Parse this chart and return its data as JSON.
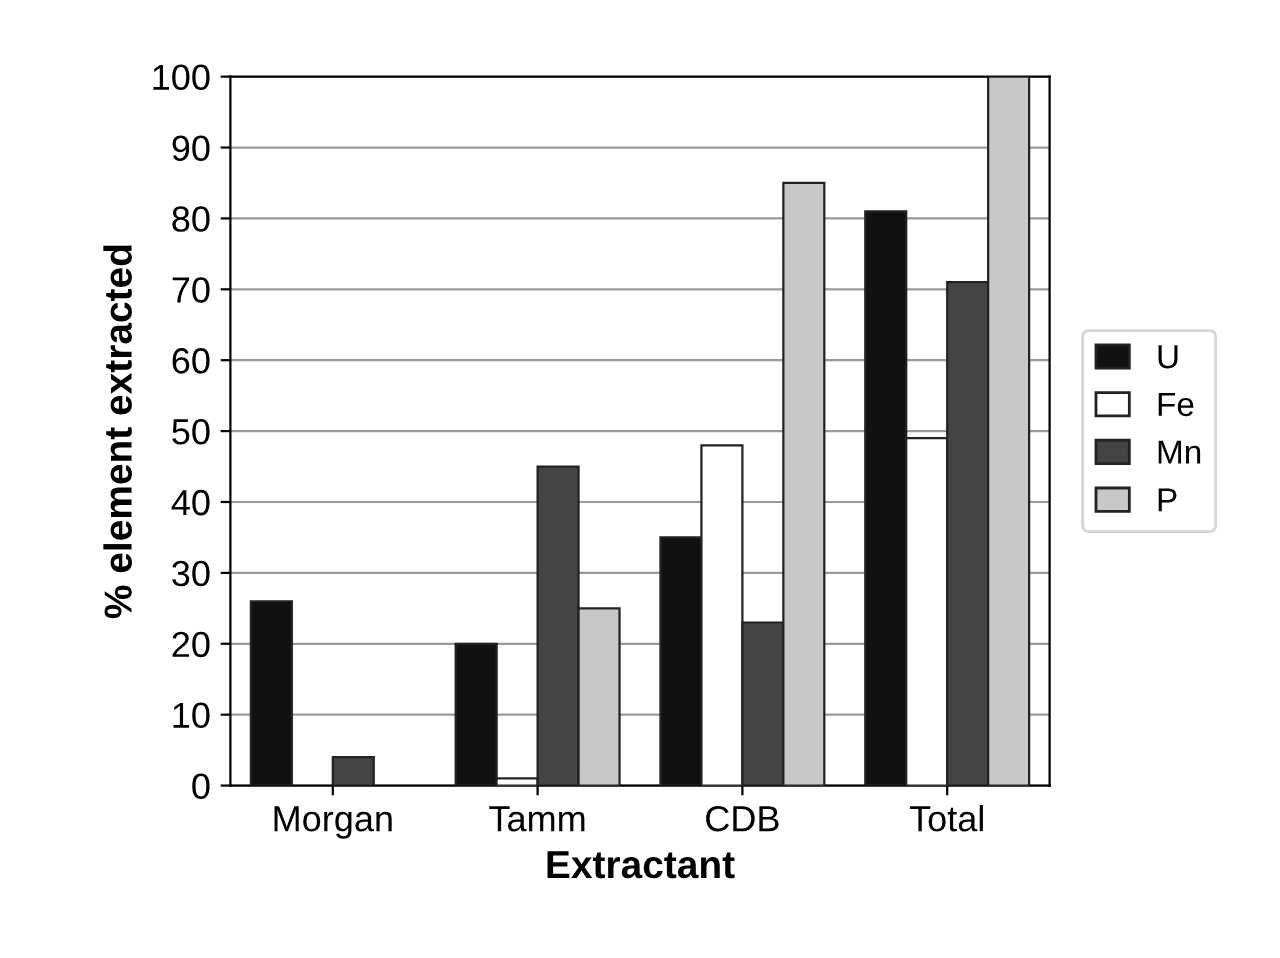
{
  "chart_data": {
    "type": "bar",
    "xlabel": "Extractant",
    "ylabel": "% element extracted",
    "categories": [
      "Morgan",
      "Tamm",
      "CDB",
      "Total"
    ],
    "series": [
      {
        "name": "U",
        "color": "#111111",
        "values": [
          26,
          20,
          35,
          81
        ]
      },
      {
        "name": "Fe",
        "color": "#ffffff",
        "values": [
          null,
          1,
          48,
          49
        ]
      },
      {
        "name": "Mn",
        "color": "#444444",
        "values": [
          4,
          45,
          23,
          71
        ]
      },
      {
        "name": "P",
        "color": "#c8c8c8",
        "values": [
          null,
          25,
          85,
          100
        ]
      }
    ],
    "ylim": [
      0,
      100
    ],
    "yticks": [
      0,
      10,
      20,
      30,
      40,
      50,
      60,
      70,
      80,
      90,
      100
    ],
    "grid": "y",
    "legend": "right"
  }
}
